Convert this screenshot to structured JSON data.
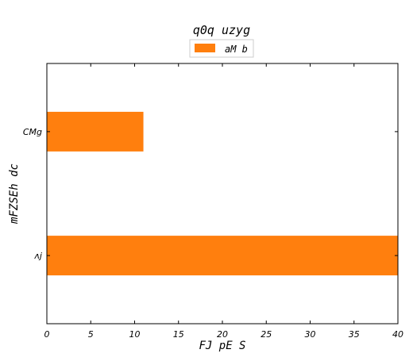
{
  "chart_data": {
    "type": "bar",
    "orientation": "horizontal",
    "title": "q0q uzyg",
    "xlabel": "FJ pE S",
    "ylabel": "mFZSEh dc",
    "categories": [
      "CMg",
      "ʌj"
    ],
    "series": [
      {
        "name": "aM b",
        "values": [
          11,
          40
        ],
        "color": "#ff7f0e"
      }
    ],
    "xlim": [
      0,
      40
    ],
    "xticks": [
      0,
      5,
      10,
      15,
      20,
      25,
      30,
      35,
      40
    ],
    "grid": false,
    "legend": "top-center"
  }
}
